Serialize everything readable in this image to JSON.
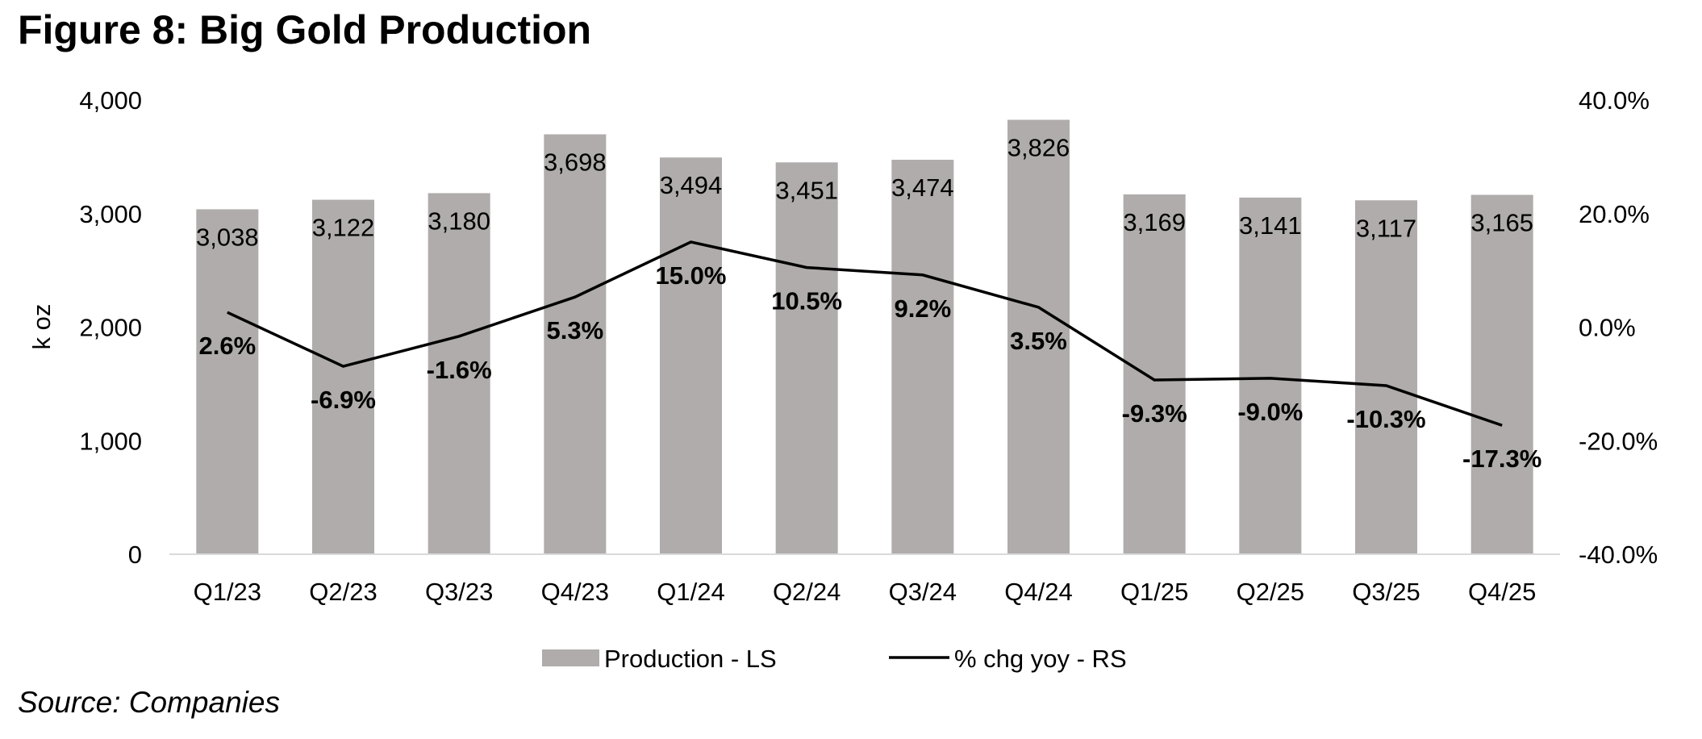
{
  "title": "Figure 8: Big Gold Production",
  "source": "Source: Companies",
  "chart_data": {
    "type": "bar",
    "title": "Figure 8: Big Gold Production",
    "categories": [
      "Q1/23",
      "Q2/23",
      "Q3/23",
      "Q4/23",
      "Q1/24",
      "Q2/24",
      "Q3/24",
      "Q4/24",
      "Q1/25",
      "Q2/25",
      "Q3/25",
      "Q4/25"
    ],
    "ylabel": "k oz",
    "ylim": [
      0,
      4000
    ],
    "yticks": [
      "0",
      "1,000",
      "2,000",
      "3,000",
      "4,000"
    ],
    "y2lim": [
      -40,
      40
    ],
    "y2ticks": [
      "-40.0%",
      "-20.0%",
      "0.0%",
      "20.0%",
      "40.0%"
    ],
    "grid": false,
    "legend_position": "bottom",
    "series": [
      {
        "name": "Production - LS",
        "type": "bar",
        "axis": "left",
        "color": "#afacab",
        "values": [
          3038,
          3122,
          3180,
          3698,
          3494,
          3451,
          3474,
          3826,
          3169,
          3141,
          3117,
          3165
        ],
        "labels": [
          "3,038",
          "3,122",
          "3,180",
          "3,698",
          "3,494",
          "3,451",
          "3,474",
          "3,826",
          "3,169",
          "3,141",
          "3,117",
          "3,165"
        ]
      },
      {
        "name": "% chg yoy - RS",
        "type": "line",
        "axis": "right",
        "color": "#000000",
        "values": [
          2.6,
          -6.9,
          -1.6,
          5.3,
          15.0,
          10.5,
          9.2,
          3.5,
          -9.3,
          -9.0,
          -10.3,
          -17.3
        ],
        "labels": [
          "2.6%",
          "-6.9%",
          "-1.6%",
          "5.3%",
          "15.0%",
          "10.5%",
          "9.2%",
          "3.5%",
          "-9.3%",
          "-9.0%",
          "-10.3%",
          "-17.3%"
        ]
      }
    ]
  }
}
